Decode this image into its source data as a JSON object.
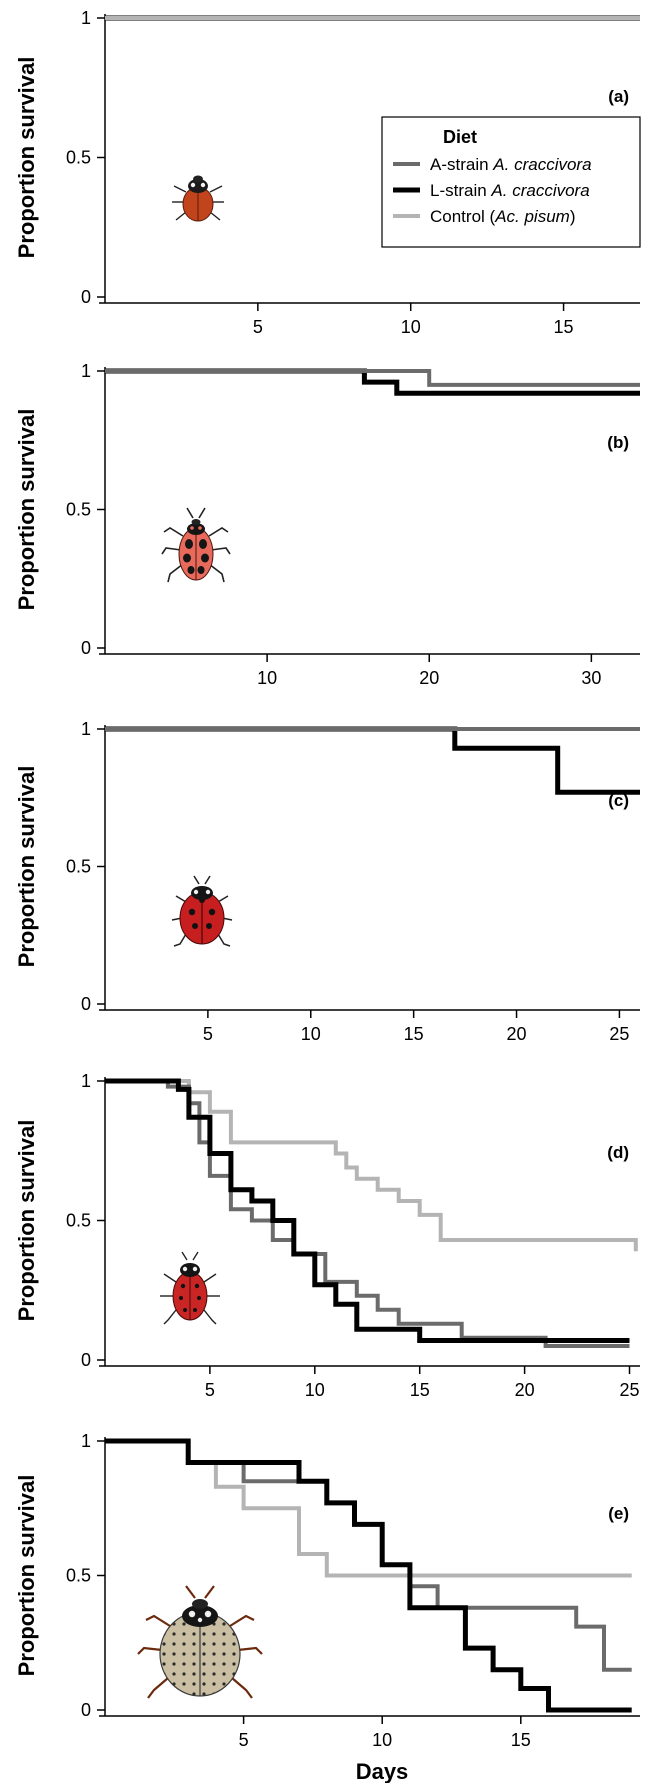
{
  "figure": {
    "xlabel": "Days",
    "legend": {
      "title": "Diet",
      "placement": "panel (a), right",
      "entries": [
        {
          "key": "A",
          "prefix": "A-strain ",
          "italic": "A. craccivora",
          "suffix": "",
          "color": "#6b6b6b"
        },
        {
          "key": "L",
          "prefix": "L-strain ",
          "italic": "A. craccivora",
          "suffix": "",
          "color": "#000000"
        },
        {
          "key": "C",
          "prefix": "Control (",
          "italic": "Ac. pisum",
          "suffix": ")",
          "color": "#b4b4b4"
        }
      ]
    }
  },
  "chart_data": [
    {
      "type": "line",
      "panel": "(a)",
      "ylabel": "Proportion survival",
      "xlim": [
        0,
        17.5
      ],
      "ylim": [
        0,
        1
      ],
      "xticks": [
        5,
        10,
        15
      ],
      "yticks": [
        0,
        0.5,
        1
      ],
      "ytick_labels": [
        "0",
        "0.5",
        "1"
      ],
      "series": [
        {
          "key": "A",
          "x": [
            0,
            17.5
          ],
          "y": [
            1,
            1
          ]
        },
        {
          "key": "L",
          "x": [
            0,
            17.5
          ],
          "y": [
            1,
            1
          ]
        },
        {
          "key": "C",
          "x": [
            0,
            17.5
          ],
          "y": [
            1,
            1
          ]
        }
      ]
    },
    {
      "type": "line",
      "panel": "(b)",
      "ylabel": "Proportion survival",
      "xlim": [
        0,
        33
      ],
      "ylim": [
        0,
        1
      ],
      "xticks": [
        10,
        20,
        30
      ],
      "yticks": [
        0,
        0.5,
        1
      ],
      "ytick_labels": [
        "0",
        "0.5",
        "1"
      ],
      "series": [
        {
          "key": "L",
          "x": [
            0,
            16,
            18,
            33
          ],
          "y": [
            1,
            0.96,
            0.92,
            0.92
          ]
        },
        {
          "key": "A",
          "x": [
            0,
            20,
            33
          ],
          "y": [
            1,
            0.95,
            0.95
          ]
        }
      ]
    },
    {
      "type": "line",
      "panel": "(c)",
      "ylabel": "Proportion survival",
      "xlim": [
        0,
        26
      ],
      "ylim": [
        0,
        1
      ],
      "xticks": [
        5,
        10,
        15,
        20,
        25
      ],
      "yticks": [
        0,
        0.5,
        1
      ],
      "ytick_labels": [
        "0",
        "0.5",
        "1"
      ],
      "series": [
        {
          "key": "L",
          "x": [
            0,
            17,
            22,
            26
          ],
          "y": [
            1,
            0.93,
            0.77,
            0.77
          ]
        },
        {
          "key": "A",
          "x": [
            0,
            26
          ],
          "y": [
            1,
            1
          ]
        }
      ]
    },
    {
      "type": "line",
      "panel": "(d)",
      "ylabel": "Proportion survival",
      "xlim": [
        0,
        25.5
      ],
      "ylim": [
        0,
        1
      ],
      "xticks": [
        5,
        10,
        15,
        20,
        25
      ],
      "yticks": [
        0,
        0.5,
        1
      ],
      "ytick_labels": [
        "0",
        "0.5",
        "1"
      ],
      "series": [
        {
          "key": "C",
          "x": [
            0,
            4,
            5,
            6,
            11,
            11.5,
            12,
            13,
            14,
            15,
            16,
            25,
            25.3
          ],
          "y": [
            1,
            0.96,
            0.89,
            0.78,
            0.74,
            0.69,
            0.65,
            0.61,
            0.57,
            0.52,
            0.43,
            0.43,
            0.39
          ]
        },
        {
          "key": "A",
          "x": [
            0,
            3,
            4,
            4.5,
            5,
            6,
            7,
            8,
            9,
            10.5,
            12,
            13,
            14,
            17,
            21,
            25
          ],
          "y": [
            1,
            0.98,
            0.92,
            0.78,
            0.66,
            0.54,
            0.5,
            0.43,
            0.38,
            0.28,
            0.23,
            0.18,
            0.13,
            0.08,
            0.05,
            0.05
          ]
        },
        {
          "key": "L",
          "x": [
            0,
            3.5,
            4,
            5,
            6,
            7,
            8,
            9,
            10,
            11,
            12,
            15,
            25
          ],
          "y": [
            1,
            0.97,
            0.87,
            0.74,
            0.61,
            0.57,
            0.5,
            0.38,
            0.27,
            0.2,
            0.11,
            0.07,
            0.07
          ]
        }
      ]
    },
    {
      "type": "line",
      "panel": "(e)",
      "ylabel": "Proportion survival",
      "xlim": [
        0,
        19.3
      ],
      "ylim": [
        0,
        1
      ],
      "xticks": [
        5,
        10,
        15
      ],
      "yticks": [
        0,
        0.5,
        1
      ],
      "ytick_labels": [
        "0",
        "0.5",
        "1"
      ],
      "series": [
        {
          "key": "C",
          "x": [
            0,
            3,
            4,
            5,
            7,
            8,
            19
          ],
          "y": [
            1,
            0.92,
            0.83,
            0.75,
            0.58,
            0.5,
            0.5
          ]
        },
        {
          "key": "A",
          "x": [
            0,
            3,
            5,
            8,
            9,
            10,
            11,
            12,
            15,
            17,
            18,
            19
          ],
          "y": [
            1,
            0.92,
            0.85,
            0.77,
            0.69,
            0.54,
            0.46,
            0.38,
            0.38,
            0.31,
            0.15,
            0.15
          ]
        },
        {
          "key": "L",
          "x": [
            0,
            3,
            7,
            8,
            9,
            10,
            11,
            13,
            14,
            15,
            16,
            19
          ],
          "y": [
            1,
            0.92,
            0.85,
            0.77,
            0.69,
            0.54,
            0.38,
            0.23,
            0.15,
            0.08,
            0,
            0
          ]
        }
      ]
    }
  ]
}
